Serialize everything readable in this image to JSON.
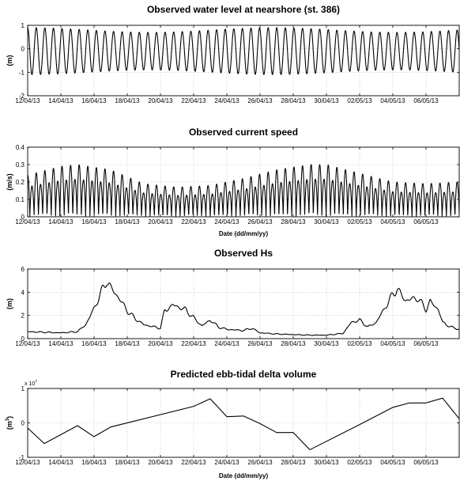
{
  "chart_data": [
    {
      "type": "line",
      "title": "Observed water level at nearshore (st. 386)",
      "xlabel": "",
      "ylabel": "(m)",
      "x_start": "12/04/13",
      "x_end": "08/05/13",
      "xticks": [
        "12/04/13",
        "14/04/13",
        "16/04/13",
        "18/04/13",
        "20/04/13",
        "22/04/13",
        "24/04/13",
        "26/04/13",
        "28/04/13",
        "30/04/13",
        "02/05/13",
        "04/05/13",
        "06/05/13"
      ],
      "yticks": [
        -2,
        -1,
        0,
        1
      ],
      "ylim": [
        -2,
        1
      ],
      "grid": true,
      "series": [
        {
          "signal": "semidiurnal tide",
          "period_hours": 12.42,
          "mean": -0.1,
          "amplitude_range": [
            0.8,
            1.0
          ],
          "color": "#000000"
        }
      ]
    },
    {
      "type": "line",
      "title": "Observed current speed",
      "xlabel": "Date (dd/mm/yy)",
      "ylabel": "(m/s)",
      "x_start": "12/04/13",
      "x_end": "08/05/13",
      "xticks": [
        "12/04/13",
        "14/04/13",
        "16/04/13",
        "18/04/13",
        "20/04/13",
        "22/04/13",
        "24/04/13",
        "26/04/13",
        "28/04/13",
        "30/04/13",
        "02/05/13",
        "04/05/13",
        "06/05/13"
      ],
      "yticks": [
        0,
        0.1,
        0.2,
        0.3,
        0.4
      ],
      "ylim": [
        0,
        0.4
      ],
      "grid": true,
      "series": [
        {
          "signal": "spring-neap modulated tidal current",
          "period_hours": 12.42,
          "peak_envelope": [
            [
              "12/04/13",
              0.24
            ],
            [
              "14/04/13",
              0.29
            ],
            [
              "15/04/13",
              0.3
            ],
            [
              "17/04/13",
              0.27
            ],
            [
              "19/04/13",
              0.19
            ],
            [
              "21/04/13",
              0.17
            ],
            [
              "23/04/13",
              0.18
            ],
            [
              "25/04/13",
              0.22
            ],
            [
              "27/04/13",
              0.27
            ],
            [
              "29/04/13",
              0.3
            ],
            [
              "30/04/13",
              0.3
            ],
            [
              "02/05/13",
              0.25
            ],
            [
              "04/05/13",
              0.2
            ],
            [
              "06/05/13",
              0.19
            ],
            [
              "08/05/13",
              0.2
            ]
          ],
          "color": "#000000"
        }
      ]
    },
    {
      "type": "line",
      "title": "Observed Hs",
      "xlabel": "",
      "ylabel": "(m)",
      "x_start": "12/04/13",
      "x_end": "08/05/13",
      "xticks": [
        "12/04/13",
        "14/04/13",
        "16/04/13",
        "18/04/13",
        "20/04/13",
        "22/04/13",
        "24/04/13",
        "26/04/13",
        "28/04/13",
        "30/04/13",
        "02/05/13",
        "04/05/13",
        "06/05/13"
      ],
      "yticks": [
        0,
        2,
        4,
        6
      ],
      "ylim": [
        0,
        6
      ],
      "grid": true,
      "series": [
        {
          "signal": "significant wave height",
          "points": [
            [
              "12/04/13",
              0.6
            ],
            [
              "13/04/13",
              0.55
            ],
            [
              "14/04/13",
              0.5
            ],
            [
              "15/04/13",
              0.6
            ],
            [
              "15/04/13 12:00",
              1.2
            ],
            [
              "16/04/13",
              2.6
            ],
            [
              "16/04/13 12:00",
              4.2
            ],
            [
              "16/04/13 18:00",
              5.0
            ],
            [
              "17/04/13",
              4.4
            ],
            [
              "17/04/13 12:00",
              3.5
            ],
            [
              "18/04/13",
              2.4
            ],
            [
              "18/04/13 12:00",
              1.7
            ],
            [
              "19/04/13",
              1.2
            ],
            [
              "20/04/13",
              0.9
            ],
            [
              "20/04/13 06:00",
              2.4
            ],
            [
              "20/04/13 18:00",
              2.9
            ],
            [
              "21/04/13 12:00",
              2.5
            ],
            [
              "22/04/13",
              1.8
            ],
            [
              "22/04/13 12:00",
              1.1
            ],
            [
              "23/04/13",
              1.6
            ],
            [
              "23/04/13 12:00",
              1.0
            ],
            [
              "24/04/13",
              0.8
            ],
            [
              "25/04/13",
              0.7
            ],
            [
              "25/04/13 12:00",
              0.9
            ],
            [
              "26/04/13",
              0.5
            ],
            [
              "27/04/13",
              0.4
            ],
            [
              "28/04/13",
              0.35
            ],
            [
              "29/04/13",
              0.3
            ],
            [
              "30/04/13",
              0.3
            ],
            [
              "01/05/13",
              0.45
            ],
            [
              "01/05/13 12:00",
              1.4
            ],
            [
              "02/05/13",
              1.6
            ],
            [
              "02/05/13 12:00",
              1.0
            ],
            [
              "03/05/13",
              1.4
            ],
            [
              "03/05/13 12:00",
              2.6
            ],
            [
              "04/05/13",
              3.8
            ],
            [
              "04/05/13 06:00",
              4.3
            ],
            [
              "04/05/13 18:00",
              3.3
            ],
            [
              "05/05/13 12:00",
              3.5
            ],
            [
              "06/05/13",
              2.5
            ],
            [
              "06/05/13 06:00",
              3.2
            ],
            [
              "06/05/13 18:00",
              2.5
            ],
            [
              "07/05/13",
              1.4
            ],
            [
              "07/05/13 12:00",
              1.0
            ],
            [
              "08/05/13",
              0.8
            ]
          ],
          "color": "#000000"
        }
      ]
    },
    {
      "type": "line",
      "title": "Predicted ebb-tidal delta volume",
      "xlabel": "Date (dd/mm/yy)",
      "ylabel": "(m",
      "ylabel_superscript": "3",
      "ylabel_close": ")",
      "y_exponent_base": "x 10",
      "y_exponent_power": "7",
      "x_start": "12/04/13",
      "x_end": "08/05/13",
      "xticks": [
        "12/04/13",
        "14/04/13",
        "16/04/13",
        "18/04/13",
        "20/04/13",
        "22/04/13",
        "24/04/13",
        "26/04/13",
        "28/04/13",
        "30/04/13",
        "02/05/13",
        "04/05/13",
        "06/05/13"
      ],
      "yticks": [
        -1,
        0,
        1
      ],
      "ylim": [
        -1,
        1
      ],
      "grid": true,
      "series": [
        {
          "signal": "predicted volume",
          "points": [
            [
              "12/04/13",
              -0.15
            ],
            [
              "13/04/13",
              -0.6
            ],
            [
              "15/04/13",
              -0.08
            ],
            [
              "16/04/13",
              -0.4
            ],
            [
              "17/04/13",
              -0.12
            ],
            [
              "22/04/13",
              0.48
            ],
            [
              "23/04/13",
              0.7
            ],
            [
              "24/04/13",
              0.18
            ],
            [
              "25/04/13",
              0.2
            ],
            [
              "26/04/13",
              -0.02
            ],
            [
              "27/04/13",
              -0.28
            ],
            [
              "28/04/13",
              -0.28
            ],
            [
              "29/04/13",
              -0.78
            ],
            [
              "02/05/13",
              -0.05
            ],
            [
              "04/05/13",
              0.45
            ],
            [
              "05/05/13",
              0.58
            ],
            [
              "06/05/13",
              0.58
            ],
            [
              "07/05/13",
              0.72
            ],
            [
              "08/05/13",
              0.12
            ]
          ],
          "color": "#000000"
        }
      ]
    }
  ]
}
